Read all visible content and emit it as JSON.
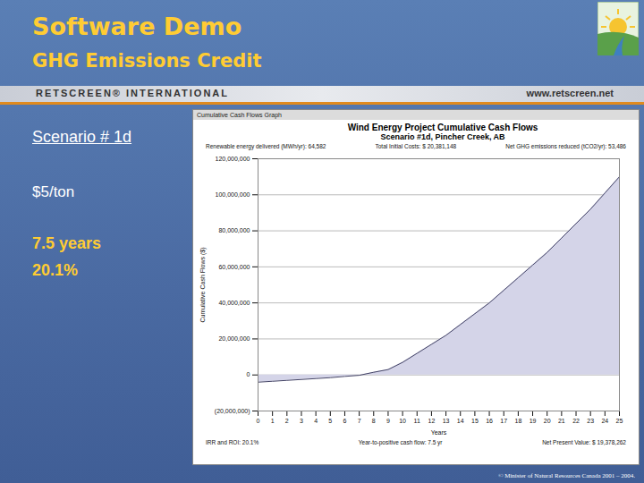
{
  "slide": {
    "title": "Software Demo",
    "subtitle": "GHG Emissions Credit",
    "banner_left": "RETSCREEN® INTERNATIONAL",
    "banner_right": "www.retscreen.net",
    "scenario": "Scenario # 1d",
    "credit": "$5/ton",
    "payback": "7.5 years",
    "irr": "20.1%",
    "footer": "© Minister of Natural Resources Canada 2001 – 2004."
  },
  "chart_data": {
    "type": "area",
    "window_title": "Cumulative Cash Flows Graph",
    "title": "Wind Energy Project Cumulative Cash Flows",
    "subtitle": "Scenario #1d, Pincher Creek, AB",
    "header_stats": [
      "Renewable energy delivered (MWh/yr): 64,582",
      "Total Initial Costs: $ 20,381,148",
      "Net GHG emissions reduced (tCO2/yr): 53,486"
    ],
    "footer_stats": [
      "IRR and ROI: 20.1%",
      "Year-to-positive cash flow: 7.5 yr",
      "Net Present Value: $ 19,378,262"
    ],
    "x_label": "Years",
    "y_label": "Cumulative Cash Flows ($)",
    "x": [
      0,
      1,
      2,
      3,
      4,
      5,
      6,
      7,
      8,
      9,
      10,
      11,
      12,
      13,
      14,
      15,
      16,
      17,
      18,
      19,
      20,
      21,
      22,
      23,
      24,
      25
    ],
    "values": [
      -4000000,
      -3500000,
      -3000000,
      -2500000,
      -2000000,
      -1500000,
      -800000,
      -200000,
      1500000,
      3000000,
      7000000,
      12000000,
      17000000,
      22000000,
      28000000,
      34000000,
      40000000,
      47000000,
      54000000,
      61000000,
      68000000,
      76000000,
      84000000,
      92000000,
      101000000,
      110000000
    ],
    "color": "#d4d4e8",
    "xlim": [
      0,
      25
    ],
    "xticks": [
      0,
      1,
      2,
      3,
      4,
      5,
      6,
      7,
      8,
      9,
      10,
      11,
      12,
      13,
      14,
      15,
      16,
      17,
      18,
      19,
      20,
      21,
      22,
      23,
      24,
      25
    ],
    "ylim": [
      -20000000,
      120000000
    ],
    "yticks": [
      {
        "value": -20000000,
        "label": "(20,000,000)"
      },
      0,
      {
        "value": 20000000,
        "label": "20,000,000"
      },
      {
        "value": 40000000,
        "label": "40,000,000"
      },
      {
        "value": 60000000,
        "label": "60,000,000"
      },
      {
        "value": 80000000,
        "label": "80,000,000"
      },
      {
        "value": 100000000,
        "label": "100,000,000"
      },
      {
        "value": 120000000,
        "label": "120,000,000"
      }
    ],
    "grid": true
  }
}
